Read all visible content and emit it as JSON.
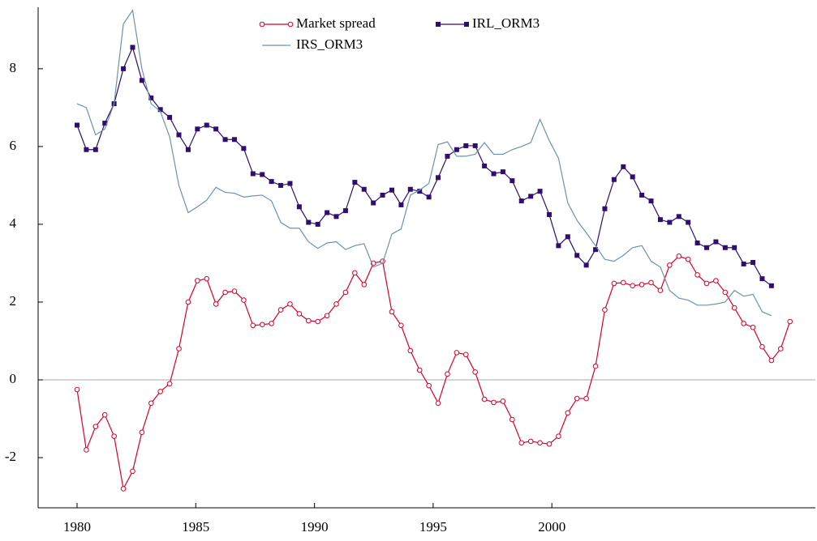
{
  "chart_data": {
    "type": "line",
    "x": [
      1980,
      1980.39,
      1980.78,
      1981.17,
      1981.56,
      1981.95,
      1982.34,
      1982.73,
      1983.12,
      1983.51,
      1983.9,
      1984.29,
      1984.68,
      1985.07,
      1985.46,
      1985.85,
      1986.24,
      1986.63,
      1987.02,
      1987.41,
      1987.8,
      1988.19,
      1988.58,
      1988.97,
      1989.36,
      1989.75,
      1990.14,
      1990.53,
      1990.92,
      1991.31,
      1991.7,
      1992.09,
      1992.48,
      1992.87,
      1993.26,
      1993.65,
      1994.04,
      1994.43,
      1994.82,
      1995.21,
      1995.6,
      1995.99,
      1996.38,
      1996.77,
      1997.16,
      1997.55,
      1997.94,
      1998.33,
      1998.72,
      1999.11,
      1999.5,
      1999.89,
      2000.28,
      2000.67,
      2001.06,
      2001.45,
      2001.84,
      2002.23,
      2002.62,
      2003.01,
      2003.4,
      2003.79,
      2004.18,
      2004.57,
      2004.96,
      2005.35,
      2005.74,
      2006.13,
      2006.52,
      2006.91,
      2007.3,
      2007.69,
      2008.08,
      2008.47,
      2008.86,
      2009.25,
      2009.64,
      2010.03
    ],
    "series": [
      {
        "name": "Market spread",
        "color": "#d7002d",
        "marker": "circle",
        "values": [
          -0.25,
          -1.8,
          -1.2,
          -0.9,
          -1.45,
          -2.8,
          -2.35,
          -1.35,
          -0.6,
          -0.3,
          -0.1,
          0.8,
          2.0,
          2.55,
          2.6,
          1.95,
          2.25,
          2.28,
          2.05,
          1.4,
          1.42,
          1.45,
          1.8,
          1.95,
          1.7,
          1.52,
          1.5,
          1.65,
          1.95,
          2.25,
          2.75,
          2.45,
          3.0,
          3.05,
          1.75,
          1.4,
          0.75,
          0.25,
          -0.15,
          -0.6,
          0.15,
          0.7,
          0.65,
          0.2,
          -0.5,
          -0.58,
          -0.55,
          -1.02,
          -1.62,
          -1.58,
          -1.62,
          -1.65,
          -1.45,
          -0.85,
          -0.48,
          -0.48,
          0.35,
          1.8,
          2.48,
          2.5,
          2.42,
          2.45,
          2.5,
          2.3,
          2.95,
          3.18,
          3.1,
          2.7,
          2.48,
          2.55,
          2.25,
          1.85,
          1.45,
          1.35,
          0.85,
          0.5,
          0.8,
          1.5
        ]
      },
      {
        "name": "IRL_ORM3",
        "color": "#2e0f70",
        "marker": "square",
        "values": [
          6.55,
          5.92,
          5.92,
          6.6,
          7.1,
          8.0,
          8.55,
          7.7,
          7.25,
          6.95,
          6.75,
          6.3,
          5.92,
          6.45,
          6.55,
          6.45,
          6.18,
          6.18,
          5.95,
          5.3,
          5.28,
          5.1,
          5.0,
          5.05,
          4.45,
          4.05,
          4.0,
          4.3,
          4.2,
          4.35,
          5.08,
          4.9,
          4.55,
          4.75,
          4.88,
          4.5,
          4.9,
          4.85,
          4.7,
          5.2,
          5.75,
          5.92,
          6.02,
          6.02,
          5.5,
          5.3,
          5.35,
          5.12,
          4.6,
          4.72,
          4.85,
          4.25,
          3.45,
          3.68,
          3.2,
          2.95,
          3.35,
          4.4,
          5.15,
          5.48,
          5.22,
          4.75,
          4.6,
          4.12,
          4.05,
          4.2,
          4.05,
          3.52,
          3.4,
          3.55,
          3.4,
          3.4,
          2.98,
          3.02,
          2.6,
          2.42,
          null,
          null
        ]
      },
      {
        "name": "IRS_ORM3",
        "color": "#6f92ab",
        "marker": "none",
        "values": [
          7.1,
          7.0,
          6.3,
          6.45,
          7.1,
          9.15,
          9.5,
          8.0,
          7.1,
          6.9,
          6.25,
          5.0,
          4.3,
          4.45,
          4.62,
          4.95,
          4.82,
          4.8,
          4.7,
          4.73,
          4.75,
          4.6,
          4.05,
          3.9,
          3.9,
          3.55,
          3.38,
          3.52,
          3.55,
          3.35,
          3.45,
          3.5,
          2.9,
          3.0,
          3.75,
          3.88,
          4.75,
          4.88,
          5.05,
          6.05,
          6.12,
          5.75,
          5.75,
          5.8,
          6.1,
          5.8,
          5.8,
          5.92,
          6.0,
          6.1,
          6.7,
          6.15,
          5.7,
          4.55,
          4.1,
          3.78,
          3.45,
          3.1,
          3.05,
          3.2,
          3.4,
          3.45,
          3.05,
          2.9,
          2.3,
          2.1,
          2.05,
          1.92,
          1.92,
          1.95,
          2.0,
          2.3,
          2.15,
          2.2,
          1.75,
          1.65,
          null,
          null
        ]
      }
    ],
    "xlim": [
      1978.36,
      2011.1
    ],
    "xticks": [
      1980,
      1985,
      1990,
      1995,
      2000
    ],
    "ylim": [
      -3.29,
      9.58
    ],
    "yticks": [
      -2,
      0,
      2,
      4,
      6,
      8
    ],
    "zero_line": true,
    "legend": "top"
  }
}
